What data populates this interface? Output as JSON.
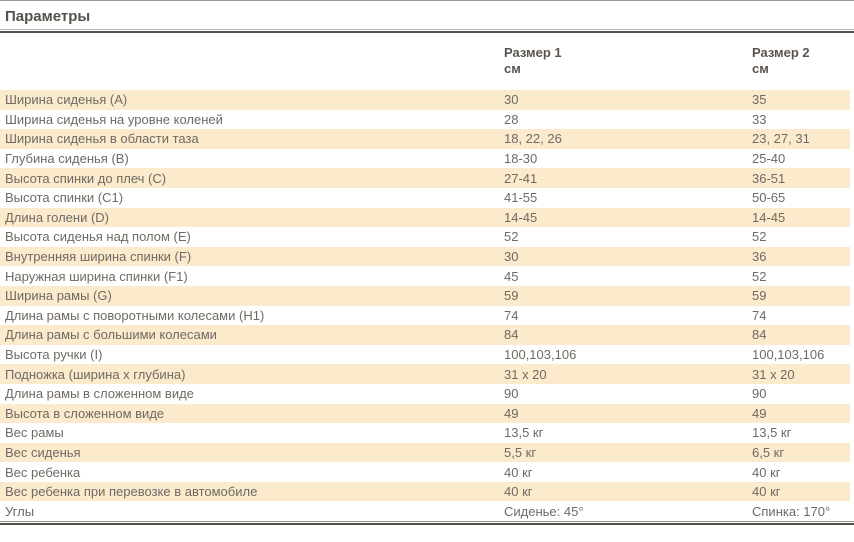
{
  "page": {
    "title": "Параметры"
  },
  "table": {
    "columns": [
      {
        "label": "Размер 1",
        "unit": "см"
      },
      {
        "label": "Размер 2",
        "unit": "см"
      }
    ],
    "rows": [
      {
        "label": "Ширина сиденья (A)",
        "size1": "30",
        "size2": "35"
      },
      {
        "label": "Ширина сиденья на уровне коленей",
        "size1": "28",
        "size2": "33"
      },
      {
        "label": "Ширина сиденья в области таза",
        "size1": "18, 22, 26",
        "size2": "23, 27, 31"
      },
      {
        "label": "Глубина сиденья (B)",
        "size1": "18-30",
        "size2": "25-40"
      },
      {
        "label": "Высота спинки до плеч (C)",
        "size1": "27-41",
        "size2": "36-51"
      },
      {
        "label": "Высота спинки (C1)",
        "size1": "41-55",
        "size2": "50-65"
      },
      {
        "label": "Длина голени (D)",
        "size1": "14-45",
        "size2": "14-45"
      },
      {
        "label": "Высота сиденья над полом (E)",
        "size1": "52",
        "size2": "52"
      },
      {
        "label": "Внутренняя ширина спинки (F)",
        "size1": "30",
        "size2": "36"
      },
      {
        "label": "Наружная ширина спинки (F1)",
        "size1": "45",
        "size2": "52"
      },
      {
        "label": "Ширина рамы (G)",
        "size1": "59",
        "size2": "59"
      },
      {
        "label": "Длина рамы с поворотными колесами (H1)",
        "size1": "74",
        "size2": "74"
      },
      {
        "label": "Длина рамы с большими колесами",
        "size1": "84",
        "size2": "84"
      },
      {
        "label": "Высота ручки (I)",
        "size1": "100,103,106",
        "size2": "100,103,106"
      },
      {
        "label": "Подножка (ширина x глубина)",
        "size1": "31 x 20",
        "size2": "31 x 20"
      },
      {
        "label": "Длина рамы в сложенном виде",
        "size1": "90",
        "size2": "90"
      },
      {
        "label": "Высота в сложенном виде",
        "size1": "49",
        "size2": "49"
      },
      {
        "label": "Вес рамы",
        "size1": "13,5 кг",
        "size2": "13,5 кг"
      },
      {
        "label": "Вес сиденья",
        "size1": "5,5 кг",
        "size2": "6,5 кг"
      },
      {
        "label": "Вес ребенка",
        "size1": "40 кг",
        "size2": "40 кг"
      },
      {
        "label": "Вес ребенка при перевозке в автомобиле",
        "size1": "40 кг",
        "size2": "40 кг"
      },
      {
        "label": "Углы",
        "size1": "Сиденье: 45°",
        "size2": "Спинка: 170°"
      }
    ],
    "colors": {
      "row_highlight": "#FBEACC",
      "body_text": "#6F6A63",
      "header_text": "#5A544D",
      "divider_dark": "#57524B",
      "divider_light": "#BBB6AE"
    }
  }
}
